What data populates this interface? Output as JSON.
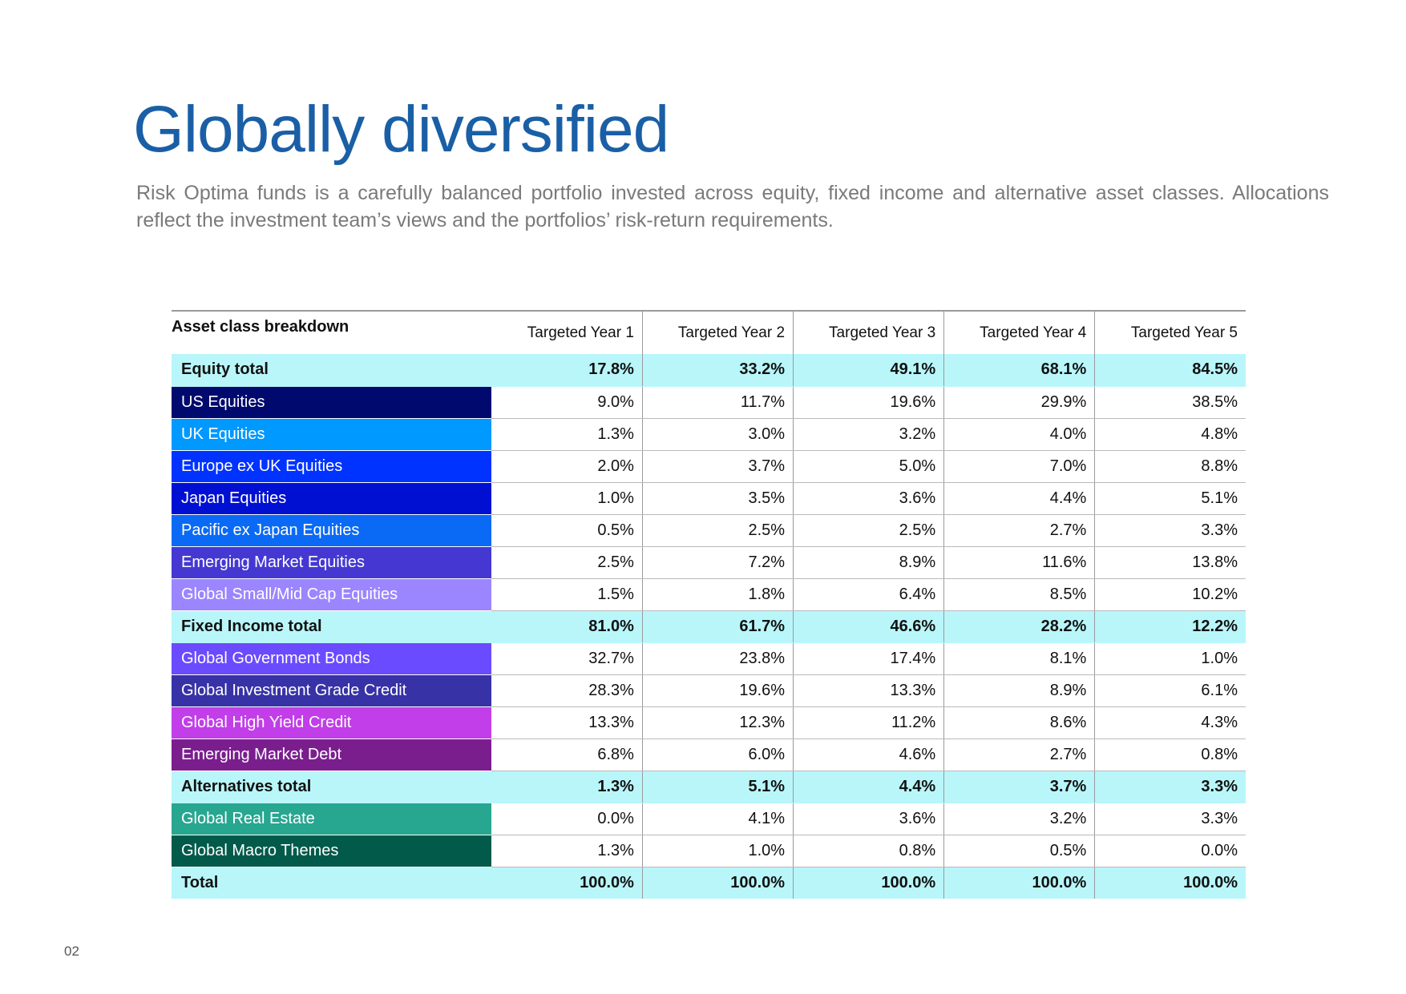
{
  "title": "Globally diversified",
  "intro": "Risk Optima funds is a carefully balanced portfolio invested across equity, fixed income and alternative asset classes. Allocations reflect the investment team’s views and the portfolios’ risk-return requirements.",
  "table": {
    "header_label": "Asset class breakdown",
    "columns": [
      "Targeted Year 1",
      "Targeted Year 2",
      "Targeted Year 3",
      "Targeted Year 4",
      "Targeted Year 5"
    ],
    "rows": [
      {
        "label": "Equity total",
        "values": [
          "17.8%",
          "33.2%",
          "49.1%",
          "68.1%",
          "84.5%"
        ],
        "type": "total"
      },
      {
        "label": "US Equities",
        "values": [
          "9.0%",
          "11.7%",
          "19.6%",
          "29.9%",
          "38.5%"
        ],
        "color": "#000a6e"
      },
      {
        "label": "UK Equities",
        "values": [
          "1.3%",
          "3.0%",
          "3.2%",
          "4.0%",
          "4.8%"
        ],
        "color": "#0099ff"
      },
      {
        "label": "Europe ex UK Equities",
        "values": [
          "2.0%",
          "3.7%",
          "5.0%",
          "7.0%",
          "8.8%"
        ],
        "color": "#0033ff"
      },
      {
        "label": "Japan Equities",
        "values": [
          "1.0%",
          "3.5%",
          "3.6%",
          "4.4%",
          "5.1%"
        ],
        "color": "#0010d2"
      },
      {
        "label": "Pacific ex Japan Equities",
        "values": [
          "0.5%",
          "2.5%",
          "2.5%",
          "2.7%",
          "3.3%"
        ],
        "color": "#0a6af5"
      },
      {
        "label": "Emerging Market Equities",
        "values": [
          "2.5%",
          "7.2%",
          "8.9%",
          "11.6%",
          "13.8%"
        ],
        "color": "#4538d2"
      },
      {
        "label": "Global Small/Mid Cap Equities",
        "values": [
          "1.5%",
          "1.8%",
          "6.4%",
          "8.5%",
          "10.2%"
        ],
        "color": "#9b86ff"
      },
      {
        "label": "Fixed Income total",
        "values": [
          "81.0%",
          "61.7%",
          "46.6%",
          "28.2%",
          "12.2%"
        ],
        "type": "total"
      },
      {
        "label": "Global Government Bonds",
        "values": [
          "32.7%",
          "23.8%",
          "17.4%",
          "8.1%",
          "1.0%"
        ],
        "color": "#6a4bff"
      },
      {
        "label": "Global Investment Grade Credit",
        "values": [
          "28.3%",
          "19.6%",
          "13.3%",
          "8.9%",
          "6.1%"
        ],
        "color": "#3732a6"
      },
      {
        "label": "Global High Yield Credit",
        "values": [
          "13.3%",
          "12.3%",
          "11.2%",
          "8.6%",
          "4.3%"
        ],
        "color": "#c13ee8"
      },
      {
        "label": "Emerging Market Debt",
        "values": [
          "6.8%",
          "6.0%",
          "4.6%",
          "2.7%",
          "0.8%"
        ],
        "color": "#7a1e8e"
      },
      {
        "label": "Alternatives total",
        "values": [
          "1.3%",
          "5.1%",
          "4.4%",
          "3.7%",
          "3.3%"
        ],
        "type": "total"
      },
      {
        "label": "Global Real Estate",
        "values": [
          "0.0%",
          "4.1%",
          "3.6%",
          "3.2%",
          "3.3%"
        ],
        "color": "#27a690"
      },
      {
        "label": "Global Macro Themes",
        "values": [
          "1.3%",
          "1.0%",
          "0.8%",
          "0.5%",
          "0.0%"
        ],
        "color": "#025a4a"
      },
      {
        "label": "Total",
        "values": [
          "100.0%",
          "100.0%",
          "100.0%",
          "100.0%",
          "100.0%"
        ],
        "type": "grand"
      }
    ]
  },
  "page_number": "02"
}
